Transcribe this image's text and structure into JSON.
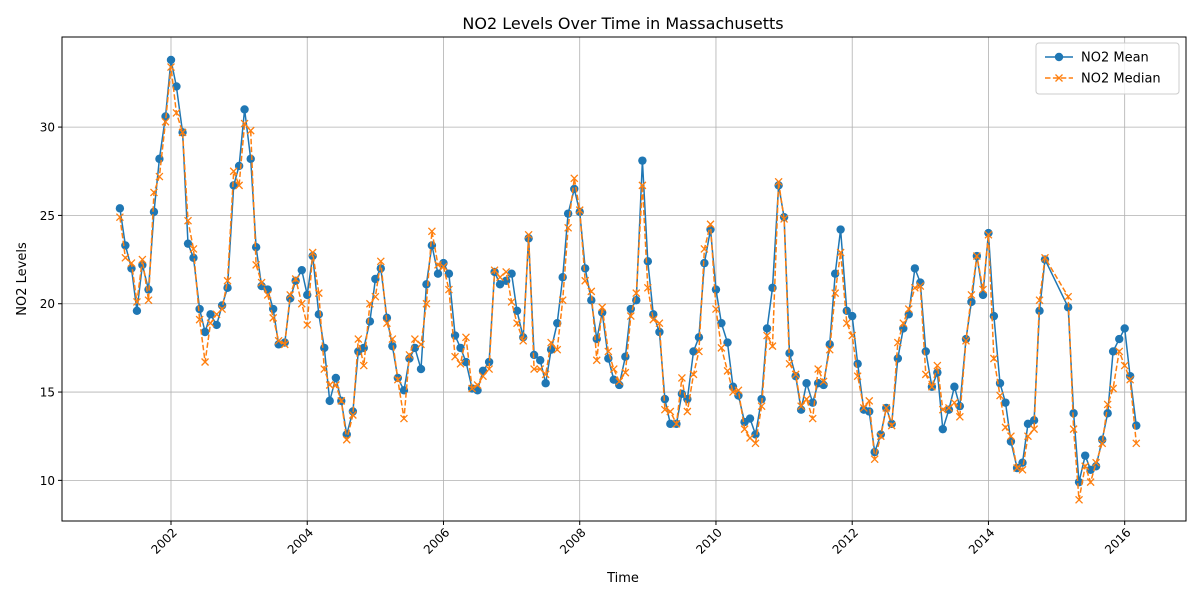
{
  "chart_data": {
    "type": "line",
    "title": "NO2 Levels Over Time in Massachusetts",
    "xlabel": "Time",
    "ylabel": "NO2 Levels",
    "xlim": [
      2000.4,
      2016.9
    ],
    "ylim": [
      7.7,
      35.1
    ],
    "x_ticks": [
      {
        "value": 2002,
        "label": "2002"
      },
      {
        "value": 2004,
        "label": "2004"
      },
      {
        "value": 2006,
        "label": "2006"
      },
      {
        "value": 2008,
        "label": "2008"
      },
      {
        "value": 2010,
        "label": "2010"
      },
      {
        "value": 2012,
        "label": "2012"
      },
      {
        "value": 2014,
        "label": "2014"
      },
      {
        "value": 2016,
        "label": "2016"
      }
    ],
    "y_ticks": [
      {
        "value": 10,
        "label": "10"
      },
      {
        "value": 15,
        "label": "15"
      },
      {
        "value": 20,
        "label": "20"
      },
      {
        "value": 25,
        "label": "25"
      },
      {
        "value": 30,
        "label": "30"
      }
    ],
    "grid": true,
    "legend_position": "top-right",
    "x": [
      2001.25,
      2001.33,
      2001.42,
      2001.5,
      2001.58,
      2001.67,
      2001.75,
      2001.83,
      2001.92,
      2002.0,
      2002.08,
      2002.17,
      2002.25,
      2002.33,
      2002.42,
      2002.5,
      2002.58,
      2002.67,
      2002.75,
      2002.83,
      2002.92,
      2003.0,
      2003.08,
      2003.17,
      2003.25,
      2003.33,
      2003.42,
      2003.5,
      2003.58,
      2003.67,
      2003.75,
      2003.83,
      2003.92,
      2004.0,
      2004.08,
      2004.17,
      2004.25,
      2004.33,
      2004.42,
      2004.5,
      2004.58,
      2004.67,
      2004.75,
      2004.83,
      2004.92,
      2005.0,
      2005.08,
      2005.17,
      2005.25,
      2005.33,
      2005.42,
      2005.5,
      2005.58,
      2005.67,
      2005.75,
      2005.83,
      2005.92,
      2006.0,
      2006.08,
      2006.17,
      2006.25,
      2006.33,
      2006.42,
      2006.5,
      2006.58,
      2006.67,
      2006.75,
      2006.83,
      2006.92,
      2007.0,
      2007.08,
      2007.17,
      2007.25,
      2007.33,
      2007.42,
      2007.5,
      2007.58,
      2007.67,
      2007.75,
      2007.83,
      2007.92,
      2008.0,
      2008.08,
      2008.17,
      2008.25,
      2008.33,
      2008.42,
      2008.5,
      2008.58,
      2008.67,
      2008.75,
      2008.83,
      2008.92,
      2009.0,
      2009.08,
      2009.17,
      2009.25,
      2009.33,
      2009.42,
      2009.5,
      2009.58,
      2009.67,
      2009.75,
      2009.83,
      2009.92,
      2010.0,
      2010.08,
      2010.17,
      2010.25,
      2010.33,
      2010.42,
      2010.5,
      2010.58,
      2010.67,
      2010.75,
      2010.83,
      2010.92,
      2011.0,
      2011.08,
      2011.17,
      2011.25,
      2011.33,
      2011.42,
      2011.5,
      2011.58,
      2011.67,
      2011.75,
      2011.83,
      2011.92,
      2012.0,
      2012.08,
      2012.17,
      2012.25,
      2012.33,
      2012.42,
      2012.5,
      2012.58,
      2012.67,
      2012.75,
      2012.83,
      2012.92,
      2013.0,
      2013.08,
      2013.17,
      2013.25,
      2013.33,
      2013.42,
      2013.5,
      2013.58,
      2013.67,
      2013.75,
      2013.83,
      2013.92,
      2014.0,
      2014.08,
      2014.17,
      2014.25,
      2014.33,
      2014.42,
      2014.5,
      2014.58,
      2014.67,
      2014.75,
      2014.83,
      2015.17,
      2015.25,
      2015.33,
      2015.42,
      2015.5,
      2015.58,
      2015.67,
      2015.75,
      2015.83,
      2015.92,
      2016.0,
      2016.08,
      2016.17
    ],
    "series": [
      {
        "name": "NO2 Mean",
        "color": "#1f77b4",
        "style": "solid-circle",
        "values": [
          25.4,
          23.3,
          22.0,
          19.6,
          22.2,
          20.8,
          25.2,
          28.2,
          30.6,
          33.8,
          32.3,
          29.7,
          23.4,
          22.6,
          19.7,
          18.4,
          19.4,
          18.8,
          19.9,
          20.9,
          26.7,
          27.8,
          31.0,
          28.2,
          23.2,
          21.0,
          20.8,
          19.7,
          17.7,
          17.8,
          20.3,
          21.3,
          21.9,
          20.5,
          22.7,
          19.4,
          17.5,
          14.5,
          15.8,
          14.5,
          12.6,
          13.9,
          17.3,
          17.5,
          19.0,
          21.4,
          22.0,
          19.2,
          17.6,
          15.8,
          15.1,
          16.9,
          17.5,
          16.3,
          21.1,
          23.3,
          21.7,
          22.3,
          21.7,
          18.2,
          17.5,
          16.7,
          15.2,
          15.1,
          16.2,
          16.7,
          21.8,
          21.1,
          21.3,
          21.7,
          19.6,
          18.1,
          23.7,
          17.1,
          16.8,
          15.5,
          17.4,
          18.9,
          21.5,
          25.1,
          26.5,
          25.2,
          22.0,
          20.2,
          18.0,
          19.5,
          16.9,
          15.7,
          15.4,
          17.0,
          19.7,
          20.2,
          28.1,
          22.4,
          19.4,
          18.4,
          14.6,
          13.2,
          13.2,
          14.9,
          14.6,
          17.3,
          18.1,
          22.3,
          24.2,
          20.8,
          18.9,
          17.8,
          15.3,
          14.8,
          13.3,
          13.5,
          12.6,
          14.6,
          18.6,
          20.9,
          26.7,
          24.9,
          17.2,
          15.9,
          14.0,
          15.5,
          14.4,
          15.5,
          15.4,
          17.7,
          21.7,
          24.2,
          19.6,
          19.3,
          16.6,
          14.0,
          13.9,
          11.6,
          12.6,
          14.1,
          13.2,
          16.9,
          18.6,
          19.4,
          22.0,
          21.2,
          17.3,
          15.3,
          16.1,
          12.9,
          14.0,
          15.3,
          14.2,
          18.0,
          20.1,
          22.7,
          20.5,
          24.0,
          19.3,
          15.5,
          14.4,
          12.2,
          10.7,
          11.0,
          13.2,
          13.4,
          19.6,
          22.5,
          19.8,
          13.8,
          9.9,
          11.4,
          10.6,
          10.8,
          12.3,
          13.8,
          17.3,
          18.0,
          18.6,
          15.9,
          13.1
        ]
      },
      {
        "name": "NO2 Median",
        "color": "#ff7f0e",
        "style": "dashed-x",
        "values": [
          24.9,
          22.6,
          22.3,
          20.1,
          22.5,
          20.2,
          26.3,
          27.2,
          30.3,
          33.4,
          30.8,
          29.7,
          24.7,
          23.1,
          19.1,
          16.7,
          18.9,
          19.4,
          19.7,
          21.3,
          27.5,
          26.7,
          30.2,
          29.8,
          22.2,
          21.2,
          20.5,
          19.2,
          17.9,
          17.7,
          20.5,
          21.4,
          20.0,
          18.8,
          22.9,
          20.6,
          16.3,
          15.4,
          15.4,
          14.5,
          12.3,
          13.7,
          18.0,
          16.5,
          20.0,
          20.4,
          22.4,
          18.9,
          18.0,
          15.7,
          13.5,
          17.1,
          18.0,
          17.7,
          20.0,
          24.1,
          22.2,
          22.1,
          20.8,
          17.0,
          16.6,
          18.1,
          15.2,
          15.4,
          15.9,
          16.3,
          21.9,
          21.5,
          21.8,
          20.1,
          18.9,
          17.9,
          23.9,
          16.3,
          16.3,
          16.0,
          17.8,
          17.4,
          20.2,
          24.3,
          27.1,
          25.3,
          21.3,
          20.7,
          16.8,
          19.8,
          17.3,
          16.3,
          15.6,
          16.1,
          19.3,
          20.6,
          26.7,
          20.9,
          19.1,
          18.9,
          14.0,
          13.9,
          13.2,
          15.8,
          13.9,
          16.0,
          17.3,
          23.1,
          24.5,
          19.7,
          17.5,
          16.2,
          15.0,
          15.1,
          12.9,
          12.4,
          12.1,
          14.2,
          18.2,
          17.6,
          26.9,
          24.8,
          16.6,
          16.0,
          14.2,
          14.6,
          13.5,
          16.3,
          15.6,
          17.4,
          20.6,
          22.9,
          18.9,
          18.2,
          15.9,
          14.1,
          14.5,
          11.2,
          12.5,
          14.1,
          13.1,
          17.8,
          18.9,
          19.7,
          20.9,
          21.0,
          16.0,
          15.3,
          16.5,
          14.0,
          14.1,
          14.4,
          13.6,
          17.9,
          20.5,
          22.7,
          20.8,
          23.9,
          16.9,
          14.8,
          13.0,
          12.5,
          10.7,
          10.6,
          12.5,
          12.9,
          20.2,
          22.6,
          20.4,
          12.9,
          8.9,
          10.8,
          9.9,
          11.0,
          12.1,
          14.3,
          15.2,
          17.3,
          16.5,
          15.7,
          12.1
        ]
      }
    ]
  }
}
